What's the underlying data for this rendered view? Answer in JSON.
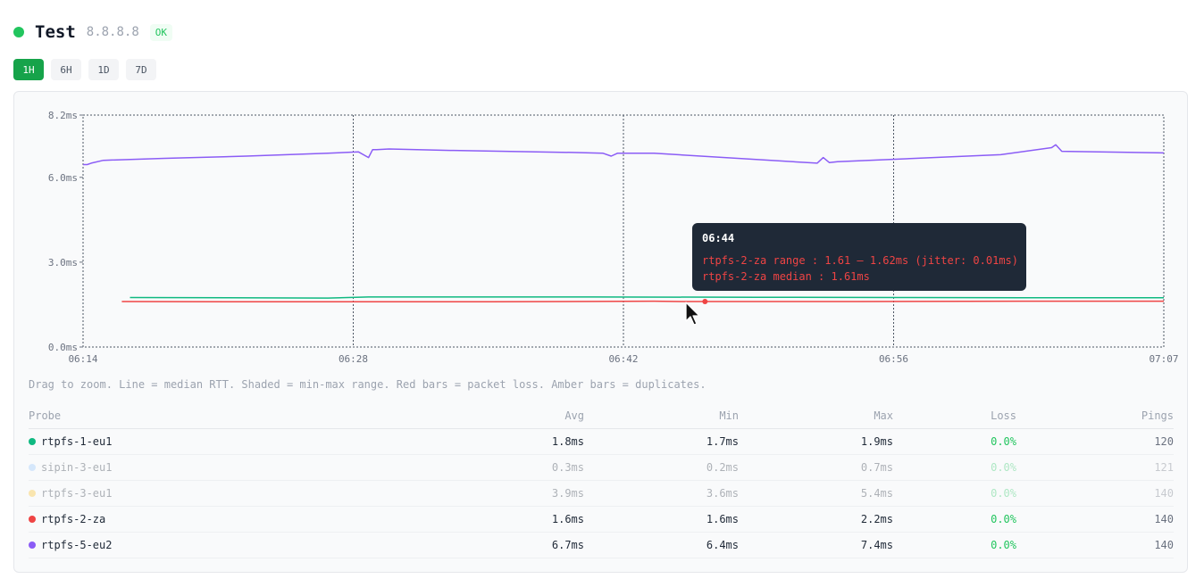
{
  "header": {
    "title": "Test",
    "ip": "8.8.8.8",
    "status": "OK"
  },
  "ranges": [
    "1H",
    "6H",
    "1D",
    "7D"
  ],
  "active_range": "1H",
  "chart_data": {
    "type": "line",
    "x_ticks": [
      "06:14",
      "06:28",
      "06:42",
      "06:56",
      "07:07"
    ],
    "y_ticks": [
      "8.2ms",
      "6.0ms",
      "3.0ms",
      "0.0ms"
    ],
    "ylim": [
      0,
      8.2
    ],
    "xlim_minutes": [
      0,
      53
    ],
    "grid": "vertical dashed at x ticks",
    "series": [
      {
        "name": "rtpfs-1-eu1",
        "color": "#10b981",
        "x": [
          2.3,
          12,
          14,
          25,
          33,
          34,
          40,
          47,
          49,
          50,
          54,
          55,
          56,
          57,
          57.6,
          58
        ],
        "y": [
          1.75,
          1.73,
          1.77,
          1.77,
          1.76,
          1.76,
          1.75,
          1.74,
          1.74,
          1.74,
          1.74,
          1.74,
          1.76,
          1.77,
          1.77,
          1.77
        ]
      },
      {
        "name": "rtpfs-2-za",
        "color": "#ef4444",
        "x": [
          1.9,
          10,
          20,
          28,
          29.3,
          38,
          47,
          47.2,
          58,
          59,
          60,
          62,
          64.5,
          64.7,
          65.2
        ],
        "y": [
          1.61,
          1.6,
          1.6,
          1.62,
          1.61,
          1.61,
          1.62,
          1.62,
          1.62,
          1.62,
          1.63,
          1.7,
          1.82,
          1.78,
          1.62
        ]
      },
      {
        "name": "rtpfs-5-eu2",
        "color": "#8b5cf6",
        "x": [
          0,
          0.2,
          0.4,
          1,
          4,
          8,
          12,
          13.5,
          14.0,
          14.2,
          14.4,
          15,
          18,
          24,
          25.5,
          25.9,
          26.2,
          28,
          36,
          36.3,
          36.6,
          37,
          45,
          47.5,
          47.7,
          48,
          54,
          57.5,
          57.7,
          58,
          62,
          65.4,
          65.6,
          65.8
        ],
        "y": [
          6.45,
          6.45,
          6.5,
          6.6,
          6.67,
          6.75,
          6.85,
          6.9,
          6.7,
          6.98,
          6.98,
          7.0,
          6.95,
          6.88,
          6.85,
          6.75,
          6.85,
          6.85,
          6.5,
          6.7,
          6.52,
          6.55,
          6.8,
          7.05,
          7.15,
          6.92,
          6.85,
          6.55,
          6.75,
          6.65,
          6.72,
          6.8,
          6.85,
          6.75
        ]
      }
    ],
    "tooltip": {
      "time": "06:44",
      "range_text": "rtpfs-2-za range : 1.61 – 1.62ms (jitter: 0.01ms)",
      "median_text": "rtpfs-2-za median : 1.61ms",
      "marker_x": 30.5,
      "marker_y": 1.61,
      "marker_color": "#ef4444"
    }
  },
  "hint": "Drag to zoom. Line = median RTT. Shaded = min-max range. Red bars = packet loss. Amber bars = duplicates.",
  "table": {
    "headers": {
      "probe": "Probe",
      "avg": "Avg",
      "min": "Min",
      "max": "Max",
      "loss": "Loss",
      "pings": "Pings"
    },
    "rows": [
      {
        "probe": "rtpfs-1-eu1",
        "color": "#10b981",
        "avg": "1.8ms",
        "min": "1.7ms",
        "max": "1.9ms",
        "loss": "0.0%",
        "pings": "120",
        "dim": false
      },
      {
        "probe": "sipin-3-eu1",
        "color": "#93c5fd",
        "avg": "0.3ms",
        "min": "0.2ms",
        "max": "0.7ms",
        "loss": "0.0%",
        "pings": "121",
        "dim": true
      },
      {
        "probe": "rtpfs-3-eu1",
        "color": "#fbbf24",
        "avg": "3.9ms",
        "min": "3.6ms",
        "max": "5.4ms",
        "loss": "0.0%",
        "pings": "140",
        "dim": true
      },
      {
        "probe": "rtpfs-2-za",
        "color": "#ef4444",
        "avg": "1.6ms",
        "min": "1.6ms",
        "max": "2.2ms",
        "loss": "0.0%",
        "pings": "140",
        "dim": false
      },
      {
        "probe": "rtpfs-5-eu2",
        "color": "#8b5cf6",
        "avg": "6.7ms",
        "min": "6.4ms",
        "max": "7.4ms",
        "loss": "0.0%",
        "pings": "140",
        "dim": false
      }
    ]
  }
}
